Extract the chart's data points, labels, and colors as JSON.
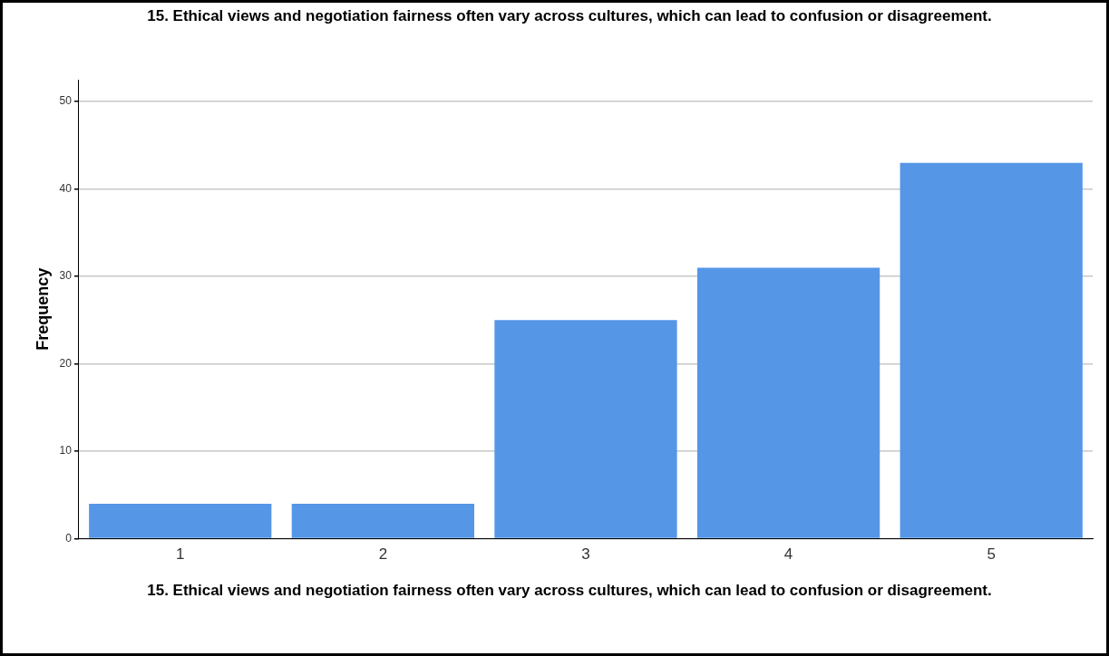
{
  "chart_data": {
    "type": "bar",
    "title": "15.  Ethical views and negotiation fairness often vary across cultures, which can lead to confusion or disagreement.",
    "xlabel": "15.  Ethical views and negotiation fairness often vary across cultures, which can lead to confusion or disagreement.",
    "ylabel": "Frequency",
    "categories": [
      "1",
      "2",
      "3",
      "4",
      "5"
    ],
    "values": [
      4,
      4,
      25,
      31,
      43
    ],
    "color": "#5596e6",
    "ylim": [
      0,
      52.5
    ],
    "yticks": [
      0,
      10,
      20,
      30,
      40,
      50
    ],
    "grid": "y",
    "legend": false
  }
}
